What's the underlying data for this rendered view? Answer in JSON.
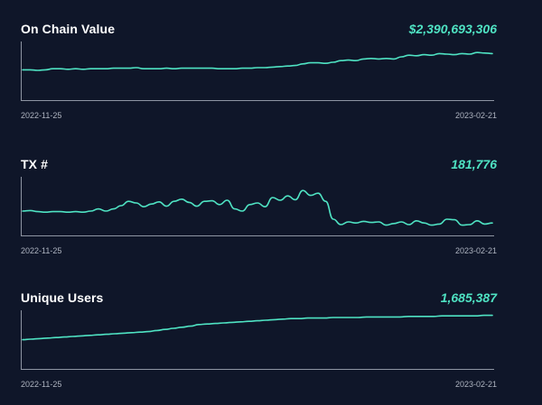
{
  "theme": {
    "background": "#0f1629",
    "accent": "#4fe3c3",
    "axis": "#8e95a3",
    "text": "#ffffff",
    "muted": "#aeb4c0"
  },
  "panels": [
    {
      "title": "On Chain Value",
      "value": "$2,390,693,306",
      "start_date": "2022-11-25",
      "end_date": "2023-02-21"
    },
    {
      "title": "TX #",
      "value": "181,776",
      "start_date": "2022-11-25",
      "end_date": "2023-02-21"
    },
    {
      "title": "Unique Users",
      "value": "1,685,387",
      "start_date": "2022-11-25",
      "end_date": "2023-02-21"
    }
  ],
  "chart_data": [
    {
      "type": "line",
      "title": "On Chain Value",
      "x_start": "2022-11-25",
      "x_end": "2023-02-21",
      "ylim": [
        0,
        100
      ],
      "series": [
        {
          "values": [
            51,
            51,
            50,
            51,
            53,
            53,
            52,
            53,
            52,
            53,
            53,
            53,
            54,
            54,
            54,
            55,
            53,
            53,
            53,
            54,
            53,
            54,
            54,
            54,
            54,
            54,
            53,
            53,
            53,
            54,
            54,
            55,
            55,
            56,
            57,
            58,
            59,
            62,
            64,
            64,
            63,
            65,
            68,
            69,
            68,
            71,
            72,
            71,
            72,
            71,
            75,
            78,
            77,
            79,
            78,
            81,
            80,
            79,
            81,
            80,
            83,
            82,
            81
          ]
        }
      ]
    },
    {
      "type": "line",
      "title": "TX #",
      "x_start": "2022-11-25",
      "x_end": "2023-02-21",
      "ylim": [
        0,
        100
      ],
      "series": [
        {
          "values": [
            40,
            41,
            39,
            38,
            39,
            39,
            38,
            39,
            38,
            40,
            44,
            40,
            44,
            50,
            58,
            55,
            48,
            53,
            57,
            49,
            58,
            62,
            56,
            49,
            58,
            59,
            52,
            60,
            44,
            40,
            52,
            55,
            48,
            65,
            60,
            68,
            61,
            78,
            69,
            73,
            58,
            25,
            15,
            20,
            18,
            21,
            19,
            20,
            14,
            17,
            20,
            15,
            22,
            18,
            14,
            16,
            25,
            24,
            14,
            15,
            22,
            16,
            18
          ]
        }
      ]
    },
    {
      "type": "line",
      "title": "Unique Users",
      "x_start": "2022-11-25",
      "x_end": "2023-02-21",
      "ylim": [
        0,
        100
      ],
      "series": [
        {
          "values": [
            49,
            50,
            51,
            52,
            53,
            54,
            55,
            56,
            57,
            58,
            59,
            60,
            61,
            62,
            63,
            64,
            66,
            68,
            70,
            72,
            74,
            77,
            78,
            79,
            80,
            81,
            82,
            83,
            84,
            85,
            86,
            87,
            88,
            88,
            89,
            89,
            89,
            90,
            90,
            90,
            90,
            91,
            91,
            91,
            91,
            91,
            92,
            92,
            92,
            92,
            93,
            93,
            93,
            93,
            93,
            94,
            94
          ]
        }
      ]
    }
  ]
}
